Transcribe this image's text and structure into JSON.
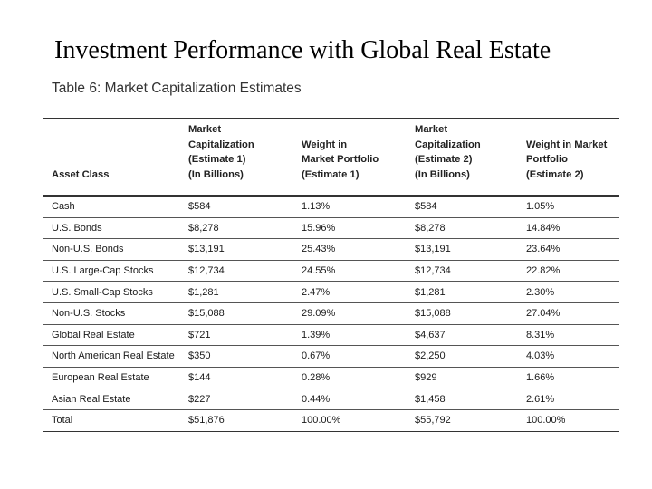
{
  "slide": {
    "title": "Investment Performance with Global Real Estate"
  },
  "table": {
    "caption": "Table 6: Market Capitalization Estimates",
    "headers": [
      [
        "Asset Class"
      ],
      [
        "Market",
        "Capitalization",
        "(Estimate 1)",
        "(In Billions)"
      ],
      [
        "Weight in",
        "Market Portfolio",
        "(Estimate 1)"
      ],
      [
        "Market",
        "Capitalization",
        "(Estimate 2)",
        "(In Billions)"
      ],
      [
        "Weight in Market",
        "Portfolio",
        "(Estimate 2)"
      ]
    ],
    "rows": [
      [
        "Cash",
        "$584",
        "1.13%",
        "$584",
        "1.05%"
      ],
      [
        "U.S. Bonds",
        "$8,278",
        "15.96%",
        "$8,278",
        "14.84%"
      ],
      [
        "Non-U.S. Bonds",
        "$13,191",
        "25.43%",
        "$13,191",
        "23.64%"
      ],
      [
        "U.S. Large-Cap Stocks",
        "$12,734",
        "24.55%",
        "$12,734",
        "22.82%"
      ],
      [
        "U.S. Small-Cap Stocks",
        "$1,281",
        "2.47%",
        "$1,281",
        "2.30%"
      ],
      [
        "Non-U.S. Stocks",
        "$15,088",
        "29.09%",
        "$15,088",
        "27.04%"
      ],
      [
        "Global Real Estate",
        "$721",
        "1.39%",
        "$4,637",
        "8.31%"
      ],
      [
        "North American Real Estate",
        "$350",
        "0.67%",
        "$2,250",
        "4.03%"
      ],
      [
        "European Real Estate",
        "$144",
        "0.28%",
        "$929",
        "1.66%"
      ],
      [
        "Asian Real Estate",
        "$227",
        "0.44%",
        "$1,458",
        "2.61%"
      ],
      [
        "Total",
        "$51,876",
        "100.00%",
        "$55,792",
        "100.00%"
      ]
    ]
  }
}
